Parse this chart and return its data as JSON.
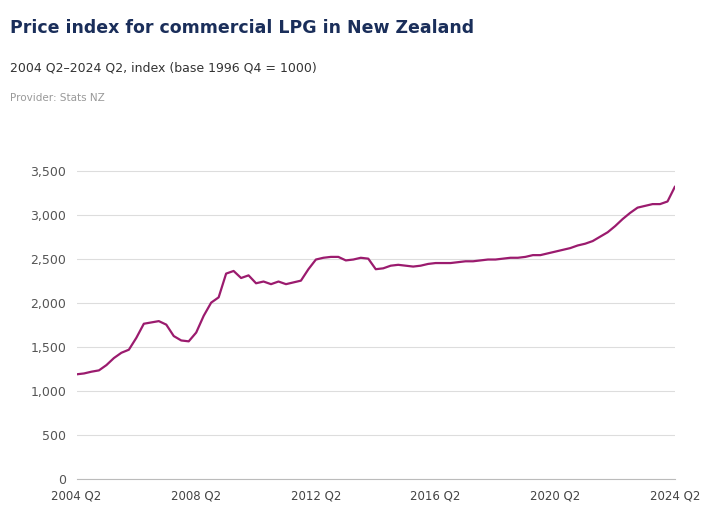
{
  "title": "Price index for commercial LPG in New Zealand",
  "subtitle": "2004 Q2–2024 Q2, index (base 1996 Q4 = 1000)",
  "provider": "Provider: Stats NZ",
  "line_color": "#9B1B6E",
  "background_color": "#ffffff",
  "plot_bg_color": "#ffffff",
  "ylim": [
    0,
    3700
  ],
  "yticks": [
    0,
    500,
    1000,
    1500,
    2000,
    2500,
    3000,
    3500
  ],
  "xtick_labels": [
    "2004 Q2",
    "2008 Q2",
    "2012 Q2",
    "2016 Q2",
    "2020 Q2",
    "2024 Q2"
  ],
  "xtick_positions": [
    0,
    16,
    32,
    48,
    64,
    80
  ],
  "figureNZ_color": "#5B6BBF",
  "title_color": "#1a2e5a",
  "subtitle_color": "#333333",
  "provider_color": "#999999",
  "data": [
    1185,
    1195,
    1215,
    1230,
    1290,
    1370,
    1430,
    1465,
    1600,
    1760,
    1775,
    1790,
    1750,
    1620,
    1570,
    1560,
    1660,
    1850,
    2000,
    2060,
    2330,
    2360,
    2280,
    2310,
    2220,
    2240,
    2210,
    2240,
    2210,
    2230,
    2250,
    2380,
    2490,
    2510,
    2520,
    2520,
    2480,
    2490,
    2510,
    2500,
    2380,
    2390,
    2420,
    2430,
    2420,
    2410,
    2420,
    2440,
    2450,
    2450,
    2450,
    2460,
    2470,
    2470,
    2480,
    2490,
    2490,
    2500,
    2510,
    2510,
    2520,
    2540,
    2540,
    2560,
    2580,
    2600,
    2620,
    2650,
    2670,
    2700,
    2750,
    2800,
    2870,
    2950,
    3020,
    3080,
    3100,
    3120,
    3120,
    3150,
    3320
  ]
}
